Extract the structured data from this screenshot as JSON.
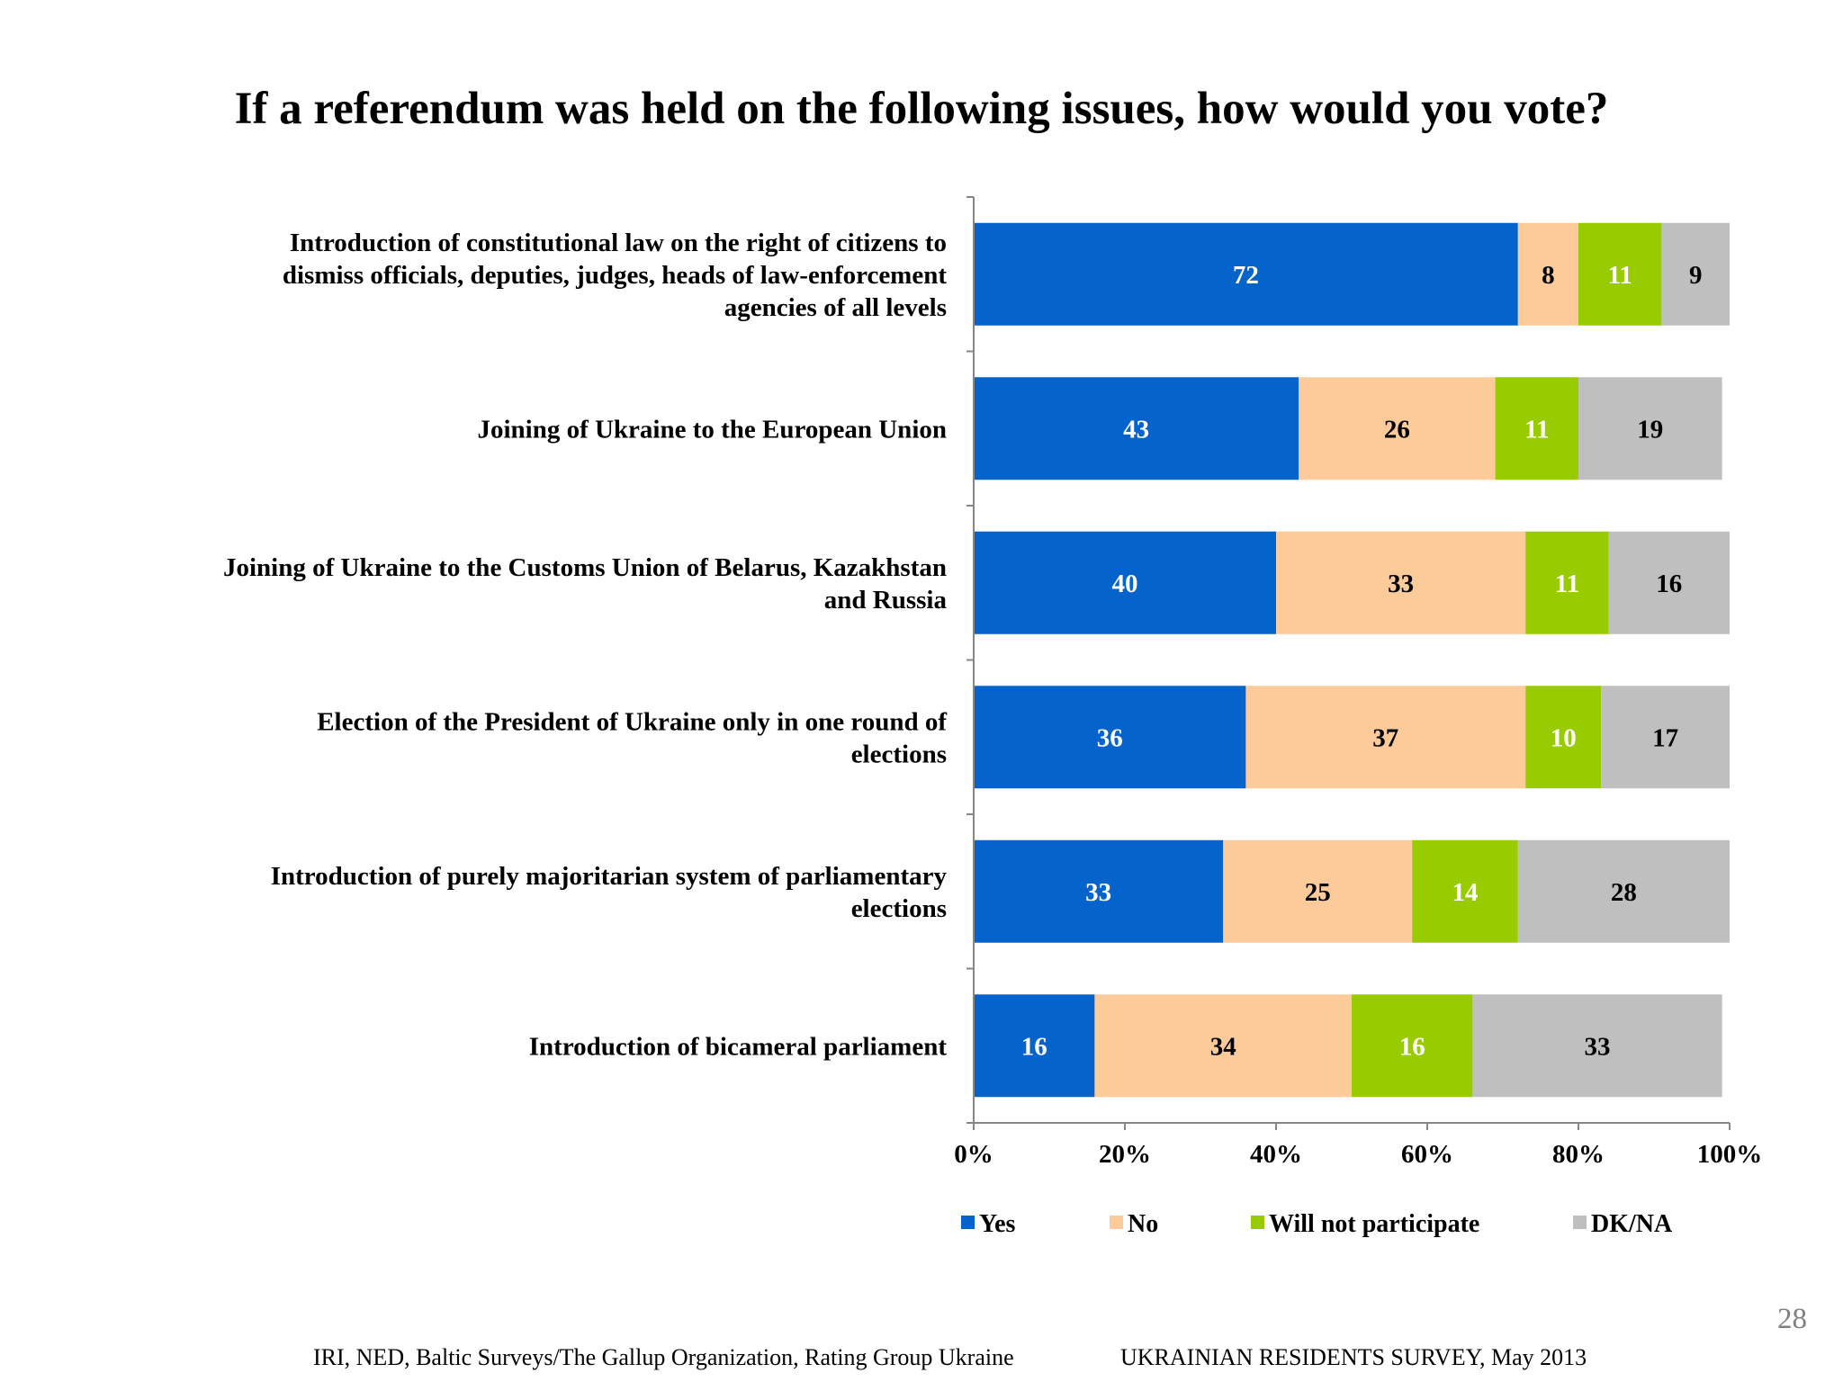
{
  "slide": {
    "title": "If a referendum was held on the following issues, how would you vote?",
    "page_number": "28",
    "footer_left": "IRI, NED,  Baltic Surveys/The Gallup Organization, Rating Group Ukraine",
    "footer_right": "UKRAINIAN RESIDENTS SURVEY, May  2013"
  },
  "chart_data": {
    "type": "bar",
    "orientation": "horizontal",
    "stacked": "percent",
    "title": "If a referendum was held on the following issues, how would you vote?",
    "categories": [
      "Introduction of constitutional law on the right of citizens to dismiss officials, deputies, judges, heads of law-enforcement agencies of all levels",
      "Joining of Ukraine to the European Union",
      "Joining of Ukraine to the Customs Union of Belarus, Kazakhstan and Russia",
      "Election of the President of Ukraine only in one round of elections",
      "Introduction of purely majoritarian system of parliamentary elections",
      "Introduction of bicameral parliament"
    ],
    "category_lines": [
      [
        "Introduction of constitutional law on the right of citizens to",
        "dismiss officials, deputies, judges, heads of law-enforcement",
        "agencies of all levels"
      ],
      [
        "Joining of Ukraine to the European Union"
      ],
      [
        "Joining of Ukraine to the Customs Union of Belarus, Kazakhstan",
        "and Russia"
      ],
      [
        "Election of the President of Ukraine only in one round of",
        "elections"
      ],
      [
        "Introduction of purely majoritarian system of parliamentary",
        "elections"
      ],
      [
        "Introduction of bicameral parliament"
      ]
    ],
    "series": [
      {
        "name": "Yes",
        "color": "#0563cc",
        "label_color": "#ffffff",
        "values": [
          72,
          43,
          40,
          36,
          33,
          16
        ]
      },
      {
        "name": "No",
        "color": "#fdca9a",
        "label_color": "#000000",
        "values": [
          8,
          26,
          33,
          37,
          25,
          34
        ]
      },
      {
        "name": "Will not participate",
        "color": "#99cc00",
        "label_color": "#ffffff",
        "values": [
          11,
          11,
          11,
          10,
          14,
          16
        ]
      },
      {
        "name": "DK/NA",
        "color": "#bfbfbf",
        "label_color": "#000000",
        "values": [
          9,
          19,
          16,
          17,
          28,
          33
        ]
      }
    ],
    "x_ticks": [
      "0%",
      "20%",
      "40%",
      "60%",
      "80%",
      "100%"
    ],
    "xlim": [
      0,
      100
    ],
    "grid": false,
    "legend_position": "bottom"
  }
}
